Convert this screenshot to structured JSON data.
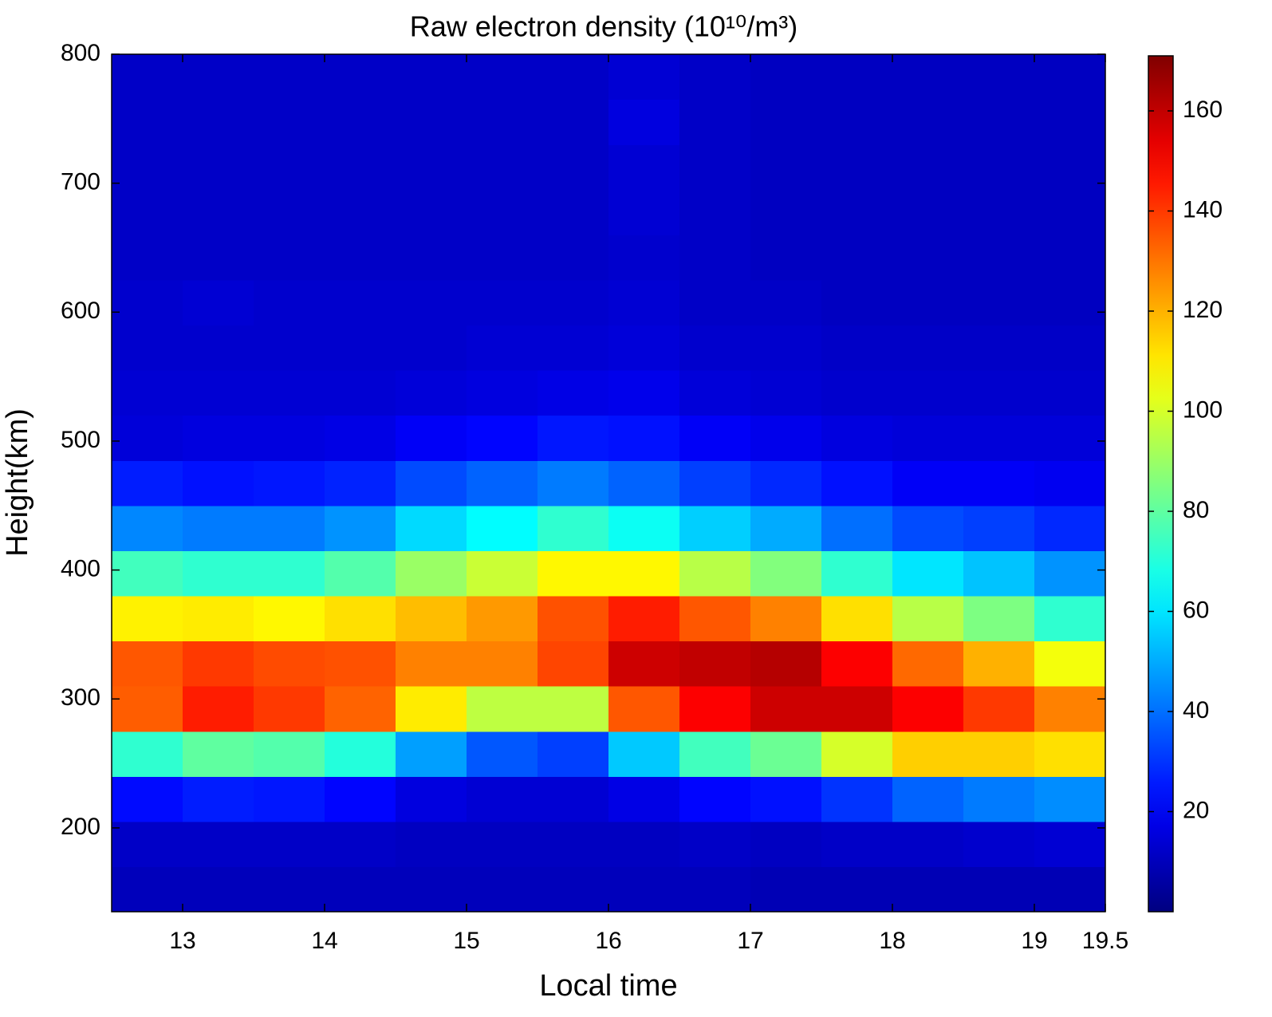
{
  "chart_data": {
    "type": "heatmap",
    "title": "Raw electron density (10¹⁰/m³)",
    "x_label": "Local time",
    "y_label": "Height(km)",
    "x": [
      12.75,
      13.25,
      13.75,
      14.25,
      14.75,
      15.25,
      15.75,
      16.25,
      16.75,
      17.25,
      17.75,
      18.25,
      18.75,
      19.25
    ],
    "y": [
      152.5,
      187.5,
      222.5,
      257.5,
      292.5,
      327.5,
      362.5,
      397.5,
      432.5,
      467.5,
      502.5,
      537.5,
      572.5,
      607.5,
      642.5,
      677.5,
      712.5,
      747.5,
      782.5
    ],
    "values": [
      [
        10,
        10,
        10,
        10,
        10,
        10,
        10,
        10,
        10,
        9,
        9,
        9,
        9,
        9
      ],
      [
        12,
        12,
        12,
        12,
        11,
        11,
        11,
        11,
        12,
        11,
        12,
        12,
        13,
        14
      ],
      [
        23,
        26,
        25,
        22,
        16,
        14,
        14,
        17,
        22,
        24,
        30,
        38,
        42,
        45
      ],
      [
        72,
        80,
        78,
        70,
        48,
        36,
        32,
        55,
        75,
        82,
        100,
        115,
        115,
        112
      ],
      [
        134,
        145,
        140,
        133,
        110,
        96,
        96,
        135,
        150,
        158,
        158,
        150,
        140,
        128
      ],
      [
        135,
        140,
        137,
        136,
        128,
        128,
        138,
        158,
        160,
        162,
        150,
        132,
        120,
        105
      ],
      [
        109,
        110,
        108,
        112,
        118,
        124,
        136,
        145,
        135,
        128,
        112,
        95,
        85,
        72
      ],
      [
        75,
        72,
        72,
        78,
        90,
        98,
        108,
        108,
        95,
        86,
        72,
        60,
        54,
        46
      ],
      [
        44,
        42,
        42,
        46,
        58,
        64,
        72,
        66,
        56,
        50,
        40,
        34,
        32,
        28
      ],
      [
        26,
        24,
        25,
        27,
        34,
        38,
        42,
        38,
        32,
        28,
        24,
        20,
        20,
        19
      ],
      [
        15,
        16,
        16,
        17,
        20,
        22,
        25,
        24,
        20,
        18,
        16,
        15,
        15,
        15
      ],
      [
        14,
        14,
        14,
        14,
        15,
        16,
        17,
        18,
        15,
        14,
        13,
        13,
        13,
        13
      ],
      [
        13,
        13,
        13,
        13,
        13,
        14,
        14,
        15,
        13,
        13,
        12,
        12,
        12,
        12
      ],
      [
        13,
        14,
        13,
        13,
        13,
        13,
        13,
        14,
        12,
        12,
        11,
        11,
        11,
        11
      ],
      [
        12,
        12,
        12,
        12,
        12,
        12,
        12,
        13,
        12,
        11,
        11,
        11,
        11,
        11
      ],
      [
        12,
        12,
        12,
        12,
        12,
        12,
        12,
        14,
        12,
        11,
        11,
        11,
        11,
        11
      ],
      [
        12,
        12,
        12,
        12,
        12,
        12,
        12,
        14,
        12,
        11,
        11,
        11,
        11,
        11
      ],
      [
        12,
        12,
        12,
        12,
        12,
        12,
        12,
        16,
        12,
        11,
        11,
        11,
        11,
        11
      ],
      [
        12,
        12,
        12,
        12,
        12,
        12,
        12,
        14,
        12,
        11,
        11,
        11,
        11,
        11
      ]
    ],
    "xlim": [
      12.5,
      19.5
    ],
    "ylim": [
      135,
      800
    ],
    "xticks": [
      13,
      14,
      15,
      16,
      17,
      18,
      19,
      19.5
    ],
    "yticks": [
      200,
      300,
      400,
      500,
      600,
      700,
      800
    ],
    "colormap": "jet",
    "clim": [
      0,
      171
    ],
    "colorbar_ticks": [
      20,
      40,
      60,
      80,
      100,
      120,
      140,
      160
    ]
  }
}
